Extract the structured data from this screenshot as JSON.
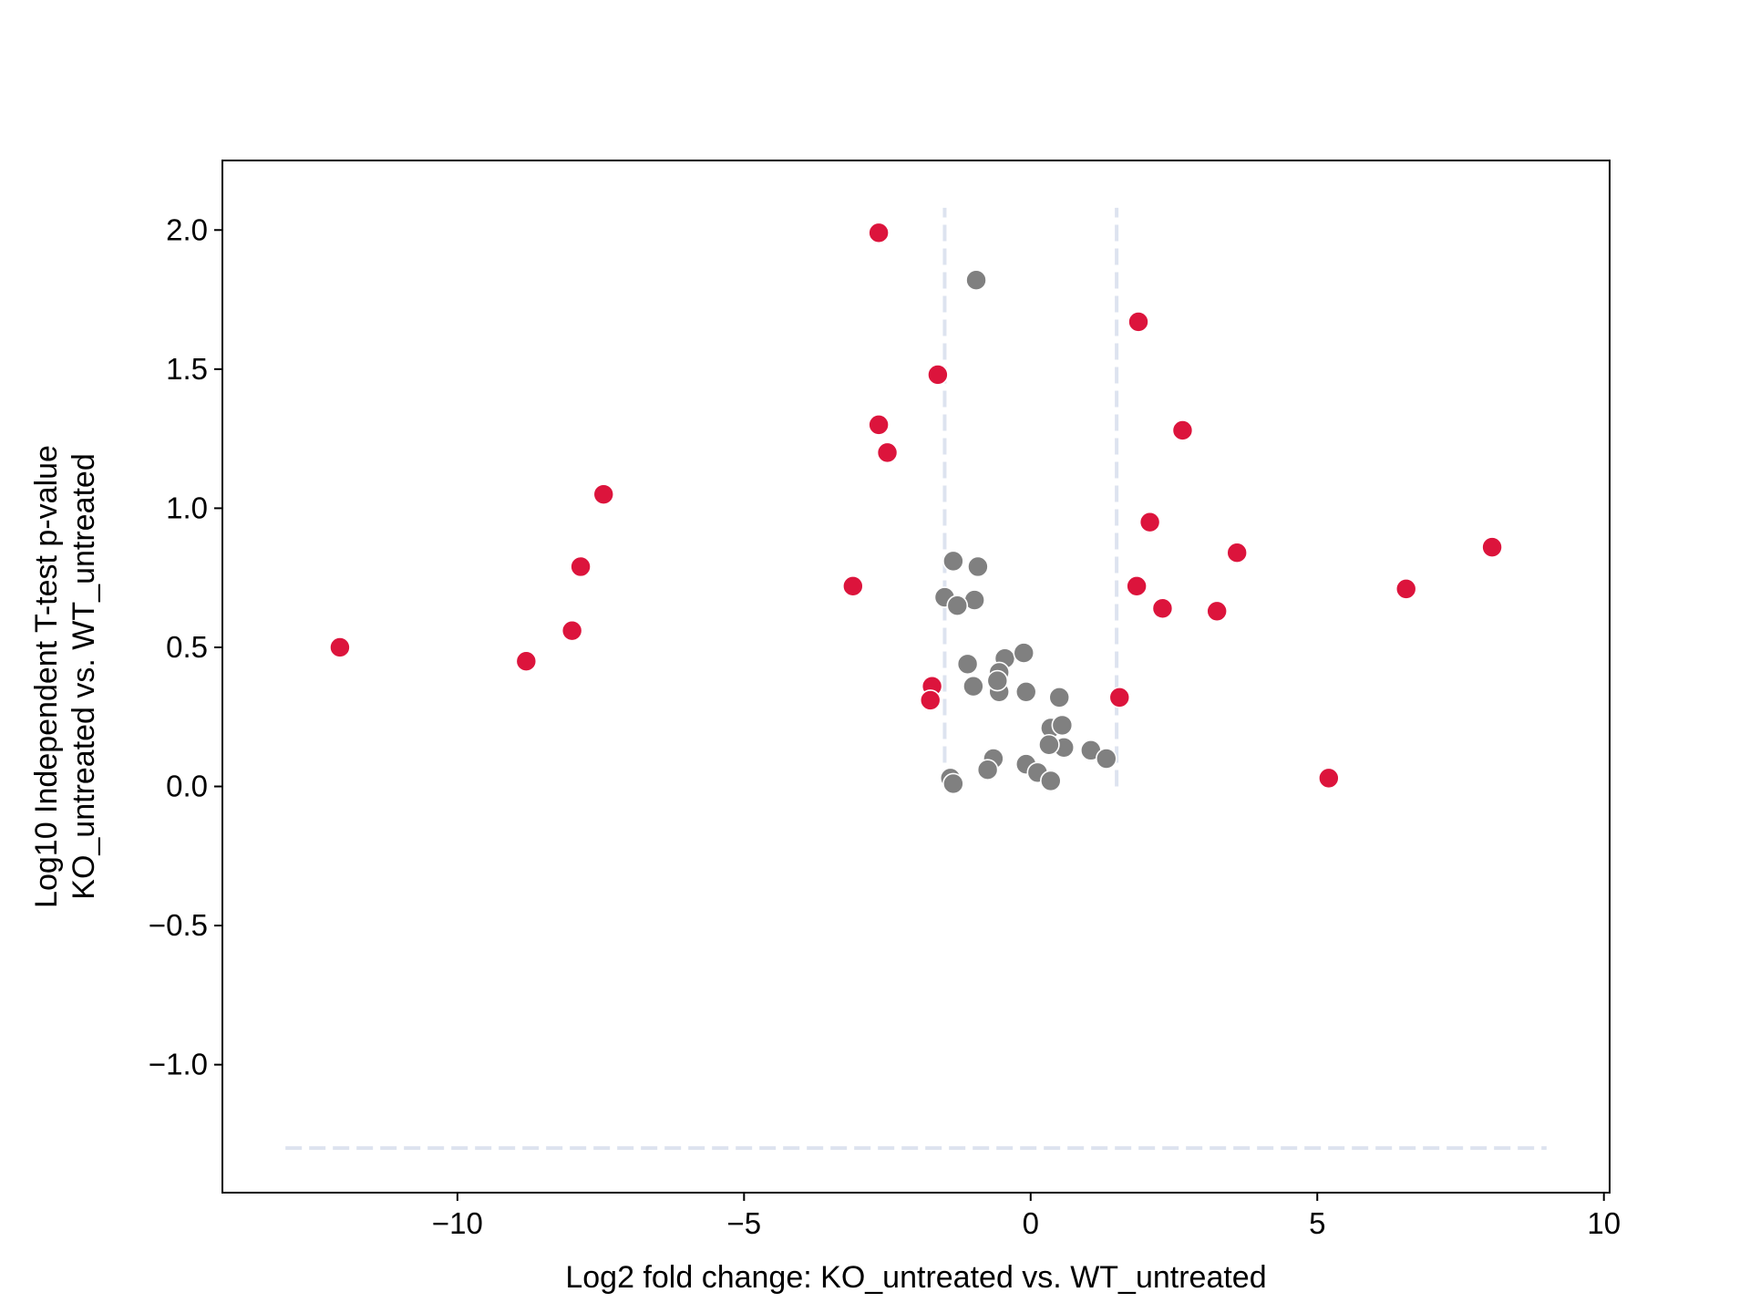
{
  "chart_data": {
    "type": "scatter",
    "title": "",
    "xlabel": "Log2 fold change: KO_untreated vs. WT_untreated",
    "ylabel_lines": [
      "Log10 Independent T-test p-value",
      "KO_untreated vs. WT_untreated"
    ],
    "xlim": [
      -14.1,
      10.1
    ],
    "ylim": [
      -1.46,
      2.25
    ],
    "xticks": [
      -10,
      -5,
      0,
      5,
      10
    ],
    "xtick_labels": [
      "−10",
      "−5",
      "0",
      "5",
      "10"
    ],
    "yticks": [
      -1.0,
      -0.5,
      0.0,
      0.5,
      1.0,
      1.5,
      2.0
    ],
    "ytick_labels": [
      "−1.0",
      "−0.5",
      "0.0",
      "0.5",
      "1.0",
      "1.5",
      "2.0"
    ],
    "grid": false,
    "colors": {
      "significant": "#dc143c",
      "not_significant": "#808080",
      "threshold_line": "#dde3ef",
      "marker_edge": "#ffffff"
    },
    "threshold_lines": [
      {
        "orientation": "vertical",
        "x": -1.5,
        "y_range": [
          0.0,
          2.08
        ]
      },
      {
        "orientation": "vertical",
        "x": 1.5,
        "y_range": [
          0.0,
          2.08
        ]
      },
      {
        "orientation": "horizontal",
        "y": -1.3,
        "x_range": [
          -13.0,
          9.0
        ]
      }
    ],
    "series": [
      {
        "group": "significant",
        "points": [
          [
            -12.05,
            0.5
          ],
          [
            -8.8,
            0.45
          ],
          [
            -8.0,
            0.56
          ],
          [
            -7.85,
            0.79
          ],
          [
            -7.45,
            1.05
          ],
          [
            -3.1,
            0.72
          ],
          [
            -2.65,
            1.99
          ],
          [
            -2.65,
            1.3
          ],
          [
            -2.5,
            1.2
          ],
          [
            -1.62,
            1.48
          ],
          [
            -1.72,
            0.36
          ],
          [
            -1.75,
            0.31
          ],
          [
            1.55,
            0.32
          ],
          [
            1.85,
            0.72
          ],
          [
            1.88,
            1.67
          ],
          [
            2.08,
            0.95
          ],
          [
            2.3,
            0.64
          ],
          [
            2.65,
            1.28
          ],
          [
            3.25,
            0.63
          ],
          [
            3.6,
            0.84
          ],
          [
            5.2,
            0.03
          ],
          [
            6.55,
            0.71
          ],
          [
            8.05,
            0.86
          ]
        ]
      },
      {
        "group": "not_significant",
        "points": [
          [
            -0.95,
            1.82
          ],
          [
            -1.35,
            0.81
          ],
          [
            -0.92,
            0.79
          ],
          [
            -1.5,
            0.68
          ],
          [
            -0.98,
            0.67
          ],
          [
            -1.28,
            0.65
          ],
          [
            -1.1,
            0.44
          ],
          [
            -0.45,
            0.46
          ],
          [
            -0.12,
            0.48
          ],
          [
            -0.55,
            0.41
          ],
          [
            -1.0,
            0.36
          ],
          [
            -0.55,
            0.34
          ],
          [
            -0.58,
            0.38
          ],
          [
            -0.08,
            0.34
          ],
          [
            0.5,
            0.32
          ],
          [
            0.35,
            0.21
          ],
          [
            0.55,
            0.22
          ],
          [
            0.58,
            0.14
          ],
          [
            0.32,
            0.15
          ],
          [
            1.05,
            0.13
          ],
          [
            1.32,
            0.1
          ],
          [
            -0.65,
            0.1
          ],
          [
            -0.75,
            0.06
          ],
          [
            -0.08,
            0.08
          ],
          [
            0.12,
            0.05
          ],
          [
            0.35,
            0.02
          ],
          [
            -1.4,
            0.03
          ],
          [
            -1.35,
            0.01
          ]
        ]
      }
    ]
  }
}
